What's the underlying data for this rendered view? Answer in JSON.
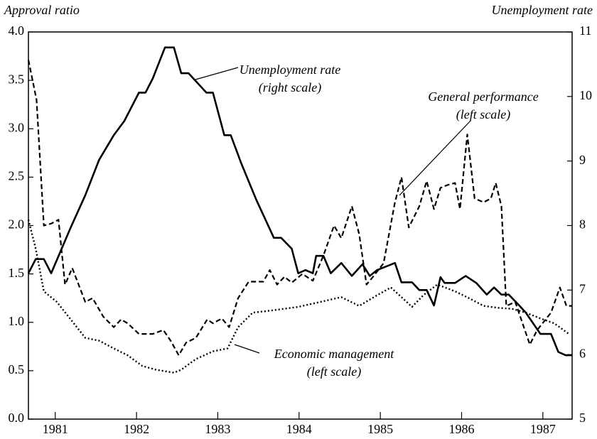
{
  "chart_data": {
    "type": "line",
    "y_label": "Approval ratio",
    "y2_label": "Unemployment rate",
    "xlim": [
      1981.17,
      1987.86
    ],
    "xticks": [
      {
        "value": 1981.5,
        "label": "1981"
      },
      {
        "value": 1982.5,
        "label": "1982"
      },
      {
        "value": 1983.5,
        "label": "1983"
      },
      {
        "value": 1984.5,
        "label": "1984"
      },
      {
        "value": 1985.5,
        "label": "1985"
      },
      {
        "value": 1986.5,
        "label": "1986"
      },
      {
        "value": 1987.5,
        "label": "1987"
      }
    ],
    "ylim": [
      0,
      4
    ],
    "yticks": [
      {
        "value": 0,
        "label": "0.0"
      },
      0.5,
      {
        "value": 1,
        "label": "1.0"
      },
      1.5,
      {
        "value": 2,
        "label": "2.0"
      },
      2.5,
      {
        "value": 3,
        "label": "3.0"
      },
      3.5,
      {
        "value": 4,
        "label": "4.0"
      }
    ],
    "y2lim": [
      5,
      11
    ],
    "y2ticks": [
      5,
      6,
      7,
      8,
      9,
      10,
      11
    ],
    "series": [
      {
        "name": "Unemployment rate",
        "scale_label": "(right scale)",
        "axis": "y2",
        "color": "#000000",
        "style": "solid",
        "x": [
          1981.17,
          1981.26,
          1981.36,
          1981.45,
          1981.69,
          1981.87,
          1982.04,
          1982.22,
          1982.35,
          1982.53,
          1982.61,
          1982.7,
          1982.85,
          1982.96,
          1983.05,
          1983.14,
          1983.36,
          1983.44,
          1983.58,
          1983.66,
          1983.79,
          1983.97,
          1984.19,
          1984.28,
          1984.41,
          1984.49,
          1984.58,
          1984.67,
          1984.71,
          1984.8,
          1984.89,
          1985.02,
          1985.15,
          1985.28,
          1985.37,
          1985.46,
          1985.68,
          1985.76,
          1985.89,
          1985.98,
          1986.07,
          1986.16,
          1986.24,
          1986.29,
          1986.42,
          1986.55,
          1986.68,
          1986.81,
          1986.9,
          1986.99,
          1987.08,
          1987.21,
          1987.29,
          1987.47,
          1987.6,
          1987.69,
          1987.78,
          1987.86
        ],
        "values": [
          7.26,
          7.48,
          7.48,
          7.26,
          7.97,
          8.47,
          9.02,
          9.4,
          9.62,
          10.06,
          10.06,
          10.28,
          10.76,
          10.76,
          10.36,
          10.36,
          10.06,
          10.06,
          9.4,
          9.4,
          8.96,
          8.41,
          7.81,
          7.81,
          7.64,
          7.26,
          7.31,
          7.26,
          7.53,
          7.53,
          7.26,
          7.42,
          7.22,
          7.4,
          7.22,
          7.31,
          7.42,
          7.12,
          7.12,
          7.0,
          7.0,
          6.76,
          7.2,
          7.11,
          7.11,
          7.22,
          7.11,
          6.93,
          7.04,
          6.93,
          6.93,
          6.76,
          6.65,
          6.32,
          6.32,
          6.04,
          5.99,
          5.99
        ]
      },
      {
        "name": "General performance",
        "scale_label": "(left scale)",
        "color": "#000000",
        "style": "dashed",
        "x": [
          1981.17,
          1981.27,
          1981.36,
          1981.45,
          1981.54,
          1981.62,
          1981.71,
          1981.87,
          1981.96,
          1982.09,
          1982.22,
          1982.31,
          1982.39,
          1982.53,
          1982.7,
          1982.83,
          1982.92,
          1983.02,
          1983.11,
          1983.23,
          1983.37,
          1983.44,
          1983.55,
          1983.64,
          1983.75,
          1983.88,
          1984.06,
          1984.14,
          1984.23,
          1984.32,
          1984.41,
          1984.54,
          1984.67,
          1984.8,
          1984.93,
          1985.02,
          1985.15,
          1985.24,
          1985.33,
          1985.41,
          1985.54,
          1985.68,
          1985.76,
          1985.85,
          1985.98,
          1986.07,
          1986.16,
          1986.24,
          1986.33,
          1986.42,
          1986.48,
          1986.57,
          1986.66,
          1986.77,
          1986.86,
          1986.92,
          1986.99,
          1987.05,
          1987.16,
          1987.25,
          1987.34,
          1987.43,
          1987.6,
          1987.71,
          1987.79,
          1987.86
        ],
        "values": [
          3.71,
          3.3,
          2.0,
          2.02,
          2.06,
          1.39,
          1.56,
          1.21,
          1.25,
          1.06,
          0.95,
          1.03,
          0.99,
          0.88,
          0.88,
          0.92,
          0.81,
          0.66,
          0.79,
          0.84,
          1.03,
          0.99,
          1.04,
          0.95,
          1.25,
          1.42,
          1.42,
          1.54,
          1.39,
          1.47,
          1.41,
          1.5,
          1.43,
          1.69,
          2.0,
          1.87,
          2.2,
          1.91,
          1.39,
          1.47,
          1.61,
          2.24,
          2.5,
          1.98,
          2.2,
          2.46,
          2.17,
          2.39,
          2.42,
          2.44,
          2.17,
          2.94,
          2.28,
          2.24,
          2.28,
          2.44,
          2.2,
          1.17,
          1.21,
          0.99,
          0.77,
          0.92,
          1.1,
          1.36,
          1.17,
          1.17
        ]
      },
      {
        "name": "Economic management",
        "scale_label": "(left scale)",
        "color": "#000000",
        "style": "dotted",
        "x": [
          1981.17,
          1981.26,
          1981.36,
          1981.52,
          1981.69,
          1981.87,
          1982.04,
          1982.22,
          1982.39,
          1982.57,
          1982.74,
          1982.96,
          1983.05,
          1983.23,
          1983.44,
          1983.62,
          1983.75,
          1983.93,
          1984.14,
          1984.49,
          1984.76,
          1985.02,
          1985.24,
          1985.46,
          1985.63,
          1985.76,
          1985.89,
          1986.03,
          1986.2,
          1986.42,
          1986.59,
          1986.77,
          1986.94,
          1987.12,
          1987.29,
          1987.47,
          1987.64,
          1987.82
        ],
        "values": [
          2.06,
          1.76,
          1.32,
          1.21,
          1.03,
          0.84,
          0.81,
          0.73,
          0.66,
          0.55,
          0.51,
          0.48,
          0.51,
          0.62,
          0.7,
          0.73,
          0.95,
          1.1,
          1.12,
          1.16,
          1.21,
          1.26,
          1.17,
          1.28,
          1.36,
          1.26,
          1.16,
          1.28,
          1.39,
          1.32,
          1.25,
          1.17,
          1.15,
          1.14,
          1.1,
          1.04,
          0.99,
          0.88
        ]
      }
    ]
  }
}
